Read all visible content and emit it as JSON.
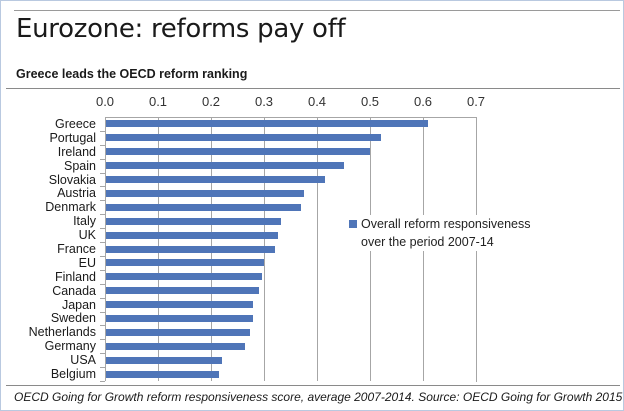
{
  "header": {
    "title": "Eurozone: reforms pay off",
    "subtitle": "Greece leads the OECD reform ranking"
  },
  "footer": {
    "note": "OECD Going for Growth reform responsiveness score, average 2007-2014. Source: OECD Going for Growth 2015"
  },
  "colors": {
    "bar": "#4f75b8",
    "frame": "#b9c9e0",
    "grid": "#a6a6a6"
  },
  "chart_data": {
    "type": "bar",
    "orientation": "horizontal",
    "title": "Eurozone: reforms pay off",
    "subtitle": "Greece leads the OECD reform ranking",
    "xlabel": "",
    "ylabel": "",
    "xlim": [
      0,
      0.7
    ],
    "x_ticks": [
      "0.0",
      "0.1",
      "0.2",
      "0.3",
      "0.4",
      "0.5",
      "0.6",
      "0.7"
    ],
    "x_axis_position": "top",
    "grid": true,
    "legend_position": "inside-right",
    "categories": [
      "Greece",
      "Portugal",
      "Ireland",
      "Spain",
      "Slovakia",
      "Austria",
      "Denmark",
      "Italy",
      "UK",
      "France",
      "EU",
      "Finland",
      "Canada",
      "Japan",
      "Sweden",
      "Netherlands",
      "Germany",
      "USA",
      "Belgium"
    ],
    "series": [
      {
        "name": "Overall reform responsiveness over the period 2007-14",
        "values": [
          0.61,
          0.52,
          0.5,
          0.45,
          0.415,
          0.375,
          0.37,
          0.333,
          0.326,
          0.32,
          0.3,
          0.296,
          0.29,
          0.28,
          0.28,
          0.273,
          0.264,
          0.22,
          0.215
        ]
      }
    ],
    "source": "OECD Going for Growth reform responsiveness score, average 2007-2014. Source: OECD Going for Growth 2015"
  }
}
